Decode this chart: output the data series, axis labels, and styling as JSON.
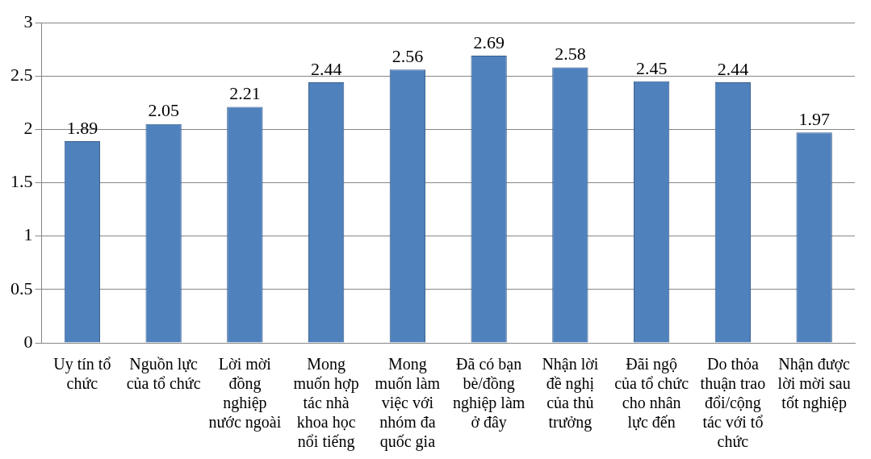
{
  "chart_data": {
    "type": "bar",
    "categories": [
      "Uy tín tổ chức",
      "Nguồn lực của tổ chức",
      "Lời mời đồng nghiệp nước ngoài",
      "Mong muốn hợp tác nhà khoa học nổi tiếng",
      "Mong muốn làm việc với nhóm đa quốc gia",
      "Đã có bạn bè/đồng nghiệp làm ở đây",
      "Nhận lời đề nghị của thủ trưởng",
      "Đãi ngộ của tổ chức cho nhân lực đến",
      "Do thỏa thuận trao đổi/cộng tác với tổ chức",
      "Nhận được lời mời sau tốt nghiệp"
    ],
    "values": [
      1.89,
      2.05,
      2.21,
      2.44,
      2.56,
      2.69,
      2.58,
      2.45,
      2.44,
      1.97
    ],
    "color": "#4f81bd",
    "ylim": [
      0,
      3
    ],
    "yticks": [
      0,
      0.5,
      1,
      1.5,
      2,
      2.5,
      3
    ],
    "grid": "y",
    "data_labels": true
  }
}
